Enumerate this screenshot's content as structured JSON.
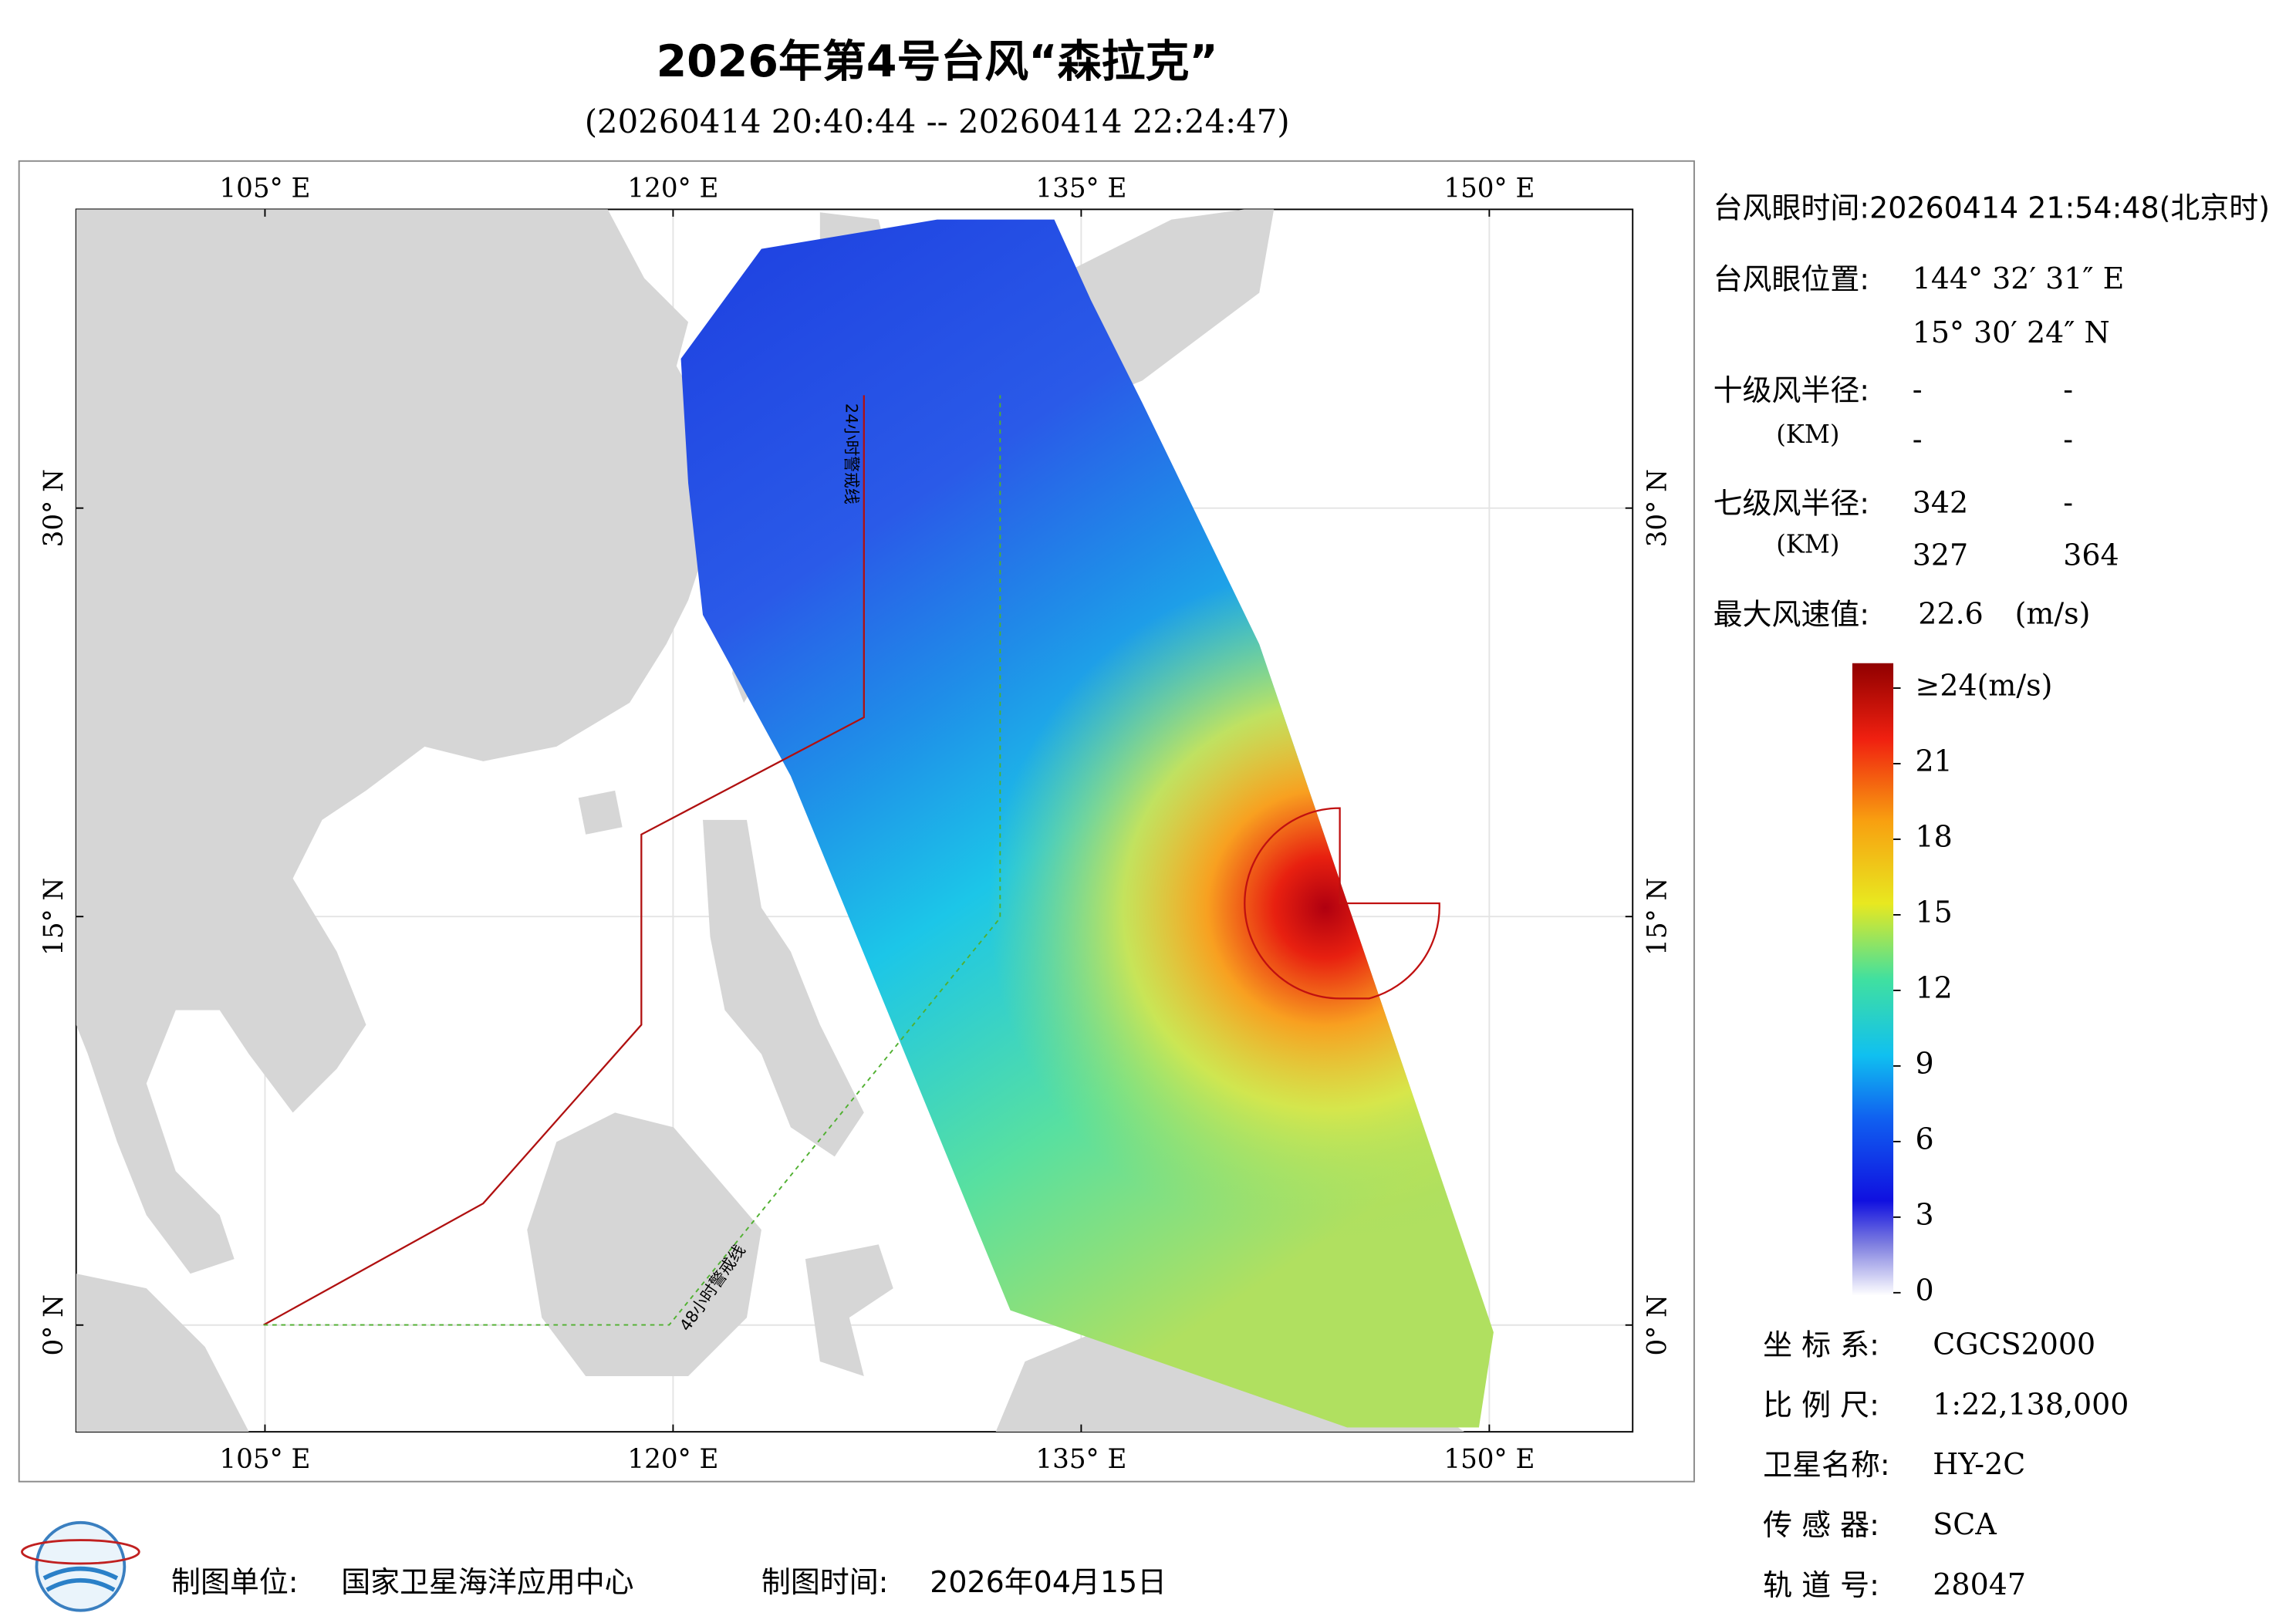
{
  "header": {
    "title": "2026年第4号台风“森拉克”",
    "subtitle": "(20260414 20:40:44 -- 20260414 22:24:47)"
  },
  "map": {
    "lonlim": [
      98.06,
      155.27
    ],
    "latlim": [
      -3.92,
      40.97
    ],
    "lon_ticks": [
      {
        "value": 105,
        "label": "105° E"
      },
      {
        "value": 120,
        "label": "120° E"
      },
      {
        "value": 135,
        "label": "135° E"
      },
      {
        "value": 150,
        "label": "150° E"
      }
    ],
    "lat_ticks": [
      {
        "value": 0,
        "label": "0° N"
      },
      {
        "value": 15,
        "label": "15° N"
      },
      {
        "value": 30,
        "label": "30° N"
      }
    ],
    "warning_lines": [
      "24小时警戒线",
      "48小时警戒线"
    ]
  },
  "info": {
    "eye_time": {
      "label": "台风眼时间:",
      "value": "20260414 21:54:48(北京时)"
    },
    "eye_position": {
      "label": "台风眼位置:",
      "lon": "144° 32′ 31″ E",
      "lat": "15° 30′ 24″ N"
    },
    "radius_10": {
      "label": "十级风半径:",
      "unit": "(KM)",
      "values": [
        "-",
        "-",
        "-",
        "-"
      ]
    },
    "radius_7": {
      "label": "七级风半径:",
      "unit": "(KM)",
      "values": [
        342,
        "-",
        327,
        364
      ]
    },
    "max_wind": {
      "label": "最大风速值:",
      "value": 22.6,
      "unit": "(m/s)"
    }
  },
  "colorbar": {
    "lim": [
      0,
      24
    ],
    "ticks": [
      0,
      3,
      6,
      9,
      12,
      15,
      18,
      21,
      {
        "value": 24,
        "label": "≥24(m/s)"
      }
    ]
  },
  "meta": [
    {
      "label": "坐 标 系:",
      "value": "CGCS2000"
    },
    {
      "label": "比 例 尺:",
      "value": "1:22,138,000"
    },
    {
      "label": "卫星名称:",
      "value": "HY-2C"
    },
    {
      "label": "传 感 器:",
      "value": "SCA"
    },
    {
      "label": "轨 道 号:",
      "value": 28047
    }
  ],
  "footer": {
    "unit_label": "制图单位:",
    "unit": "国家卫星海洋应用中心",
    "time_label": "制图时间:",
    "time": "2026年04月15日"
  }
}
